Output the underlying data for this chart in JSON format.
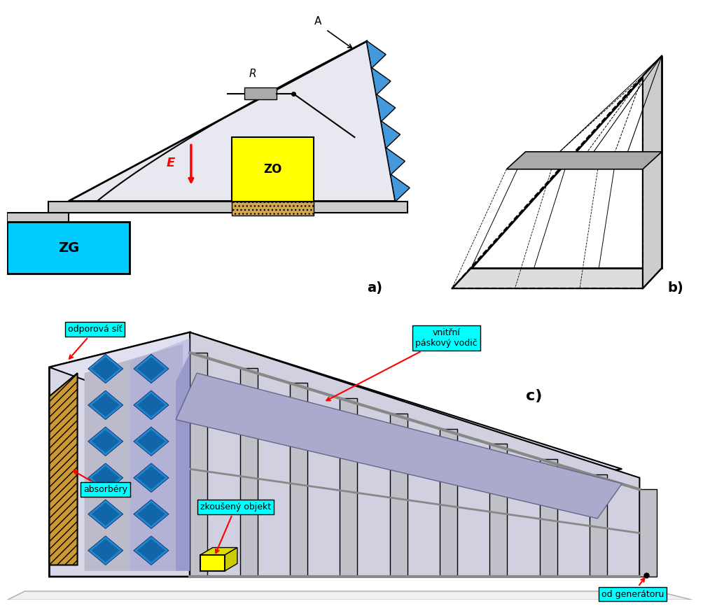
{
  "background_color": "#ffffff",
  "panel_a_bg": "#f5f5a0",
  "panel_b_bg": "#f5f5a0",
  "panel_c_bg": "#ffffff",
  "cyan_label_bg": "#00ffff",
  "label_text_color": "#000000",
  "red_color": "#ff0000",
  "annotation_line_color": "#ff0000",
  "label_a": "a)",
  "label_b": "b)",
  "label_c": "c)",
  "zg_text": "ZG",
  "zo_text": "ZO",
  "e_text": "E",
  "r_text": "R",
  "a_text": "A",
  "label_odpor": "odporová síť",
  "label_vnitr": "vnitřní\npáskový vodič",
  "label_absorb": "absorbéry",
  "label_zkous": "zkoušený objekt",
  "label_gen": "od generátoru",
  "fig_width": 10.24,
  "fig_height": 8.66
}
